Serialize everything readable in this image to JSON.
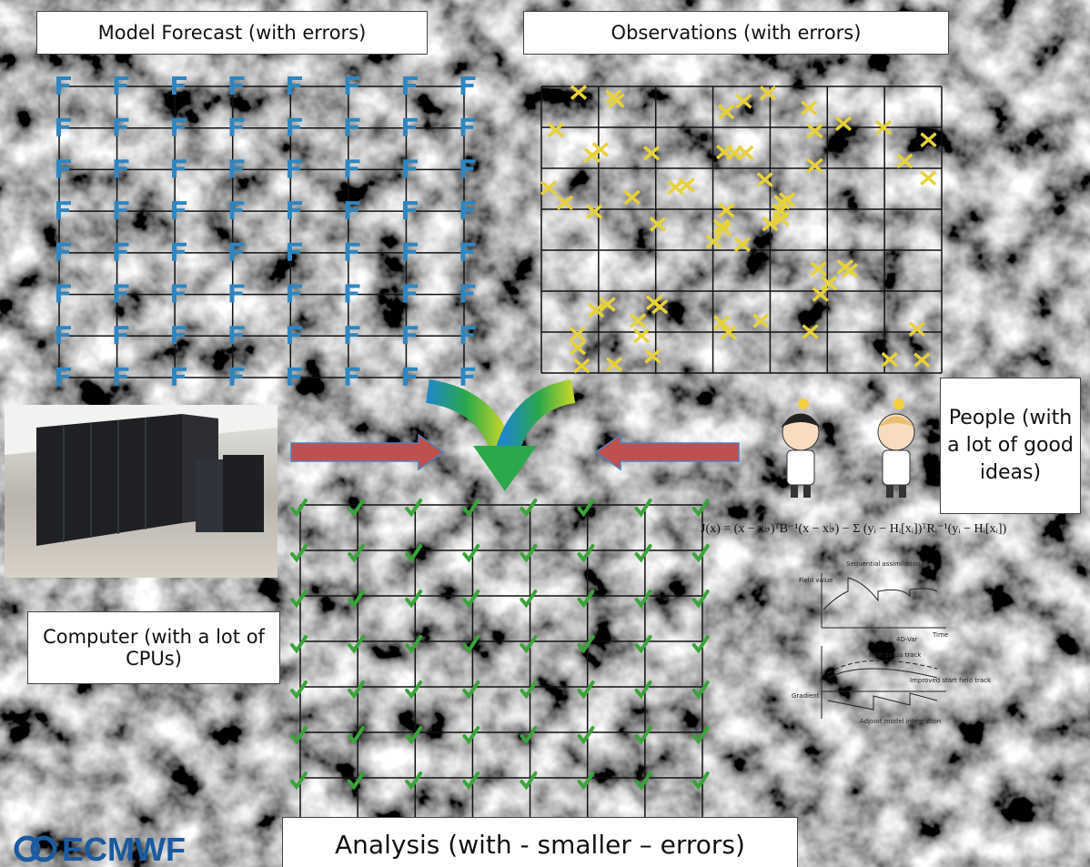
{
  "labels": {
    "forecast": "Model Forecast  (with errors)",
    "observations": "Observations (with errors)",
    "people": "People (with a lot of good ideas)",
    "computer": "Computer (with a lot of CPUs)",
    "analysis": "Analysis (with - smaller – errors)"
  },
  "logo": "ECMWF",
  "equation": "J(x) = (x − x♭)ᵀB⁻¹(x − x♭) − Σ (yᵢ − Hᵢ[xᵢ])ᵀRᵢ⁻¹(yᵢ − Hᵢ[xᵢ])",
  "sketch": {
    "top_title": "Sequential assimilation",
    "bottom_title": "4D-Var",
    "axis_value": "Field value",
    "axis_time": "Time",
    "first_guess": "First guess track",
    "improved": "Improved start field track",
    "gradient": "Gradient",
    "adjoint": "Adjoint model integration"
  }
}
